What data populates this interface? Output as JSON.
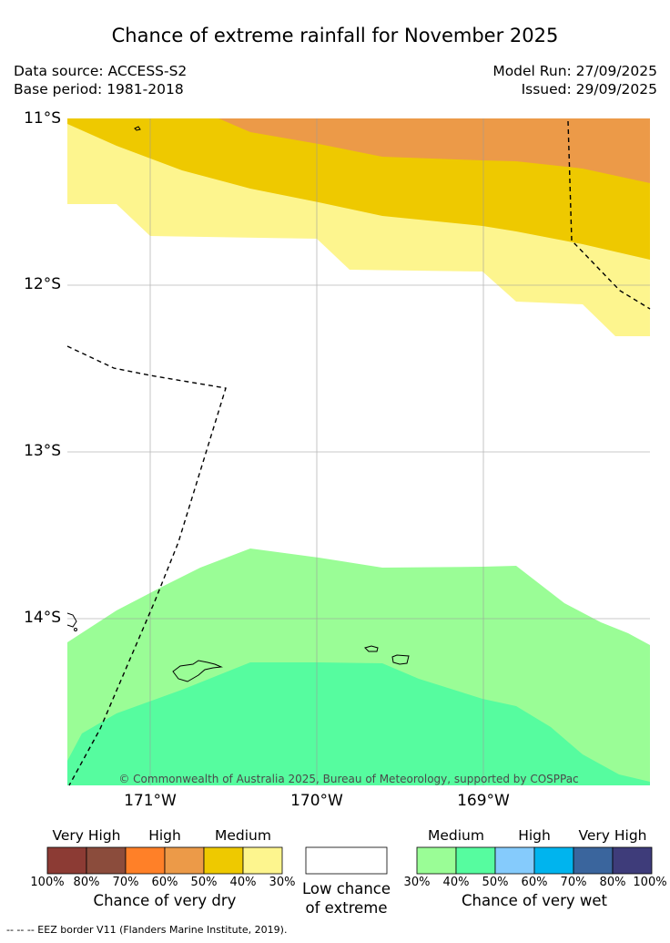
{
  "title": "Chance of extreme rainfall for November 2025",
  "meta": {
    "data_source": "Data source: ACCESS-S2",
    "base_period": "Base period: 1981-2018",
    "model_run": "Model Run: 27/09/2025",
    "issued": "Issued: 29/09/2025"
  },
  "axes": {
    "lat_labels": [
      "11°S",
      "12°S",
      "13°S",
      "14°S"
    ],
    "lon_labels": [
      "171°W",
      "170°W",
      "169°W"
    ]
  },
  "copyright": "© Commonwealth of Australia 2025, Bureau of Meteorology, supported by COSPPac",
  "colors": {
    "dry_very_high_1": "#8c3b34",
    "dry_very_high_2": "#8b4c3c",
    "dry_high_1": "#ff8028",
    "dry_high_2": "#ec9a48",
    "dry_medium_1": "#eec900",
    "dry_medium_2": "#fdf58e",
    "wet_medium_1": "#9afd96",
    "wet_medium_2": "#56fc9f",
    "wet_high_1": "#85cbfc",
    "wet_high_2": "#00b4ee",
    "wet_very_high_1": "#3a659d",
    "wet_very_high_2": "#3e3c7a"
  },
  "legend": {
    "dry": {
      "categories": [
        "Very High",
        "High",
        "Medium"
      ],
      "percent_labels": [
        "100%",
        "80%",
        "70%",
        "60%",
        "50%",
        "40%",
        "30%"
      ],
      "title": "Chance of very dry"
    },
    "low": {
      "title_line1": "Low chance",
      "title_line2": "of extreme"
    },
    "wet": {
      "categories": [
        "Medium",
        "High",
        "Very High"
      ],
      "percent_labels": [
        "30%",
        "40%",
        "50%",
        "60%",
        "70%",
        "80%",
        "100%"
      ],
      "title": "Chance of very wet"
    }
  },
  "eez_note": "--  --  -- EEZ border V11 (Flanders Marine Institute, 2019)."
}
